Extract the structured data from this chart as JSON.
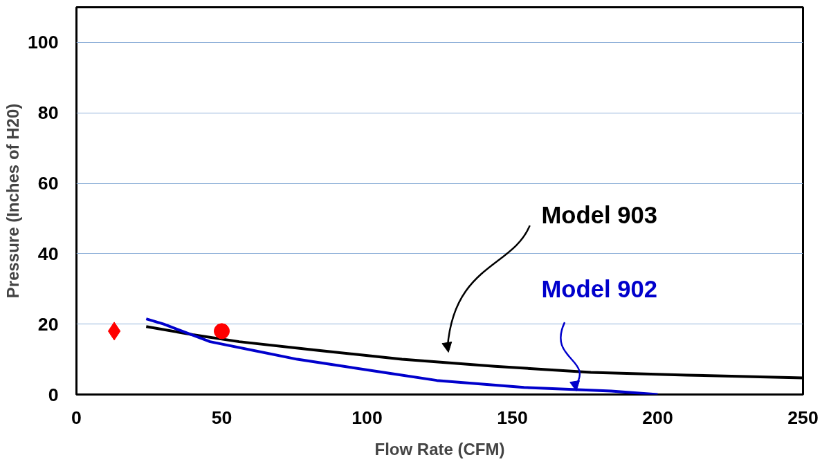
{
  "chart_data": {
    "type": "line",
    "xlabel": "Flow Rate (CFM)",
    "ylabel": "Pressure (Inches of H20)",
    "xlim": [
      0,
      250
    ],
    "xticks": [
      0,
      50,
      100,
      150,
      200,
      250
    ],
    "ylim": [
      0,
      110
    ],
    "yticks": [
      0,
      20,
      40,
      60,
      80,
      100
    ],
    "grid": "y",
    "legend": false,
    "series": [
      {
        "name": "Model 903",
        "color": "#000000",
        "x": [
          24,
          40,
          56,
          80,
          112,
          144,
          177,
          210,
          250
        ],
        "values": [
          19.3,
          17,
          15,
          12.8,
          10,
          8,
          6.3,
          5.5,
          4.7
        ]
      },
      {
        "name": "Model 902",
        "color": "#0000cc",
        "x": [
          24,
          30,
          46,
          76,
          92,
          108,
          124,
          154,
          184,
          200
        ],
        "values": [
          21.5,
          20,
          15,
          10,
          8,
          6,
          4,
          2,
          1,
          0
        ]
      },
      {
        "type": "scatter",
        "marker": "diamond",
        "color": "#ff0000",
        "x": [
          13
        ],
        "values": [
          18
        ]
      },
      {
        "type": "scatter",
        "marker": "circle",
        "color": "#ff0000",
        "x": [
          50
        ],
        "values": [
          18
        ]
      }
    ]
  }
}
